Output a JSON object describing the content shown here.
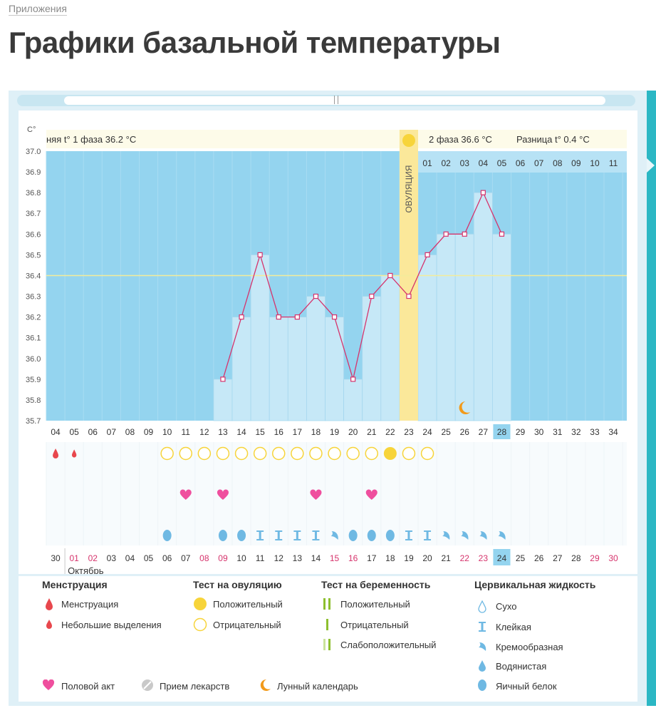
{
  "breadcrumb": "Приложения",
  "page_title": "Графики базальной температуры",
  "chart_data": {
    "type": "line",
    "y_unit": "C°",
    "ylim": [
      35.7,
      37.0
    ],
    "y_ticks": [
      "37.0",
      "36.9",
      "36.8",
      "36.7",
      "36.6",
      "36.5",
      "36.4",
      "36.3",
      "36.2",
      "36.1",
      "36.0",
      "35.9",
      "35.8",
      "35.7"
    ],
    "phase1_label": "няя t° 1 фаза 36.2 °C",
    "phase2_label": "2 фаза 36.6 °C",
    "diff_label": "Разница t° 0.4 °C",
    "ovulation_label": "ОВУЛЯЦИЯ",
    "coverline": 36.4,
    "phase2_days": [
      "01",
      "02",
      "03",
      "04",
      "05",
      "06",
      "07",
      "08",
      "09",
      "10",
      "11"
    ],
    "cycle_days": [
      "04",
      "05",
      "06",
      "07",
      "08",
      "09",
      "10",
      "11",
      "12",
      "13",
      "14",
      "15",
      "16",
      "17",
      "18",
      "19",
      "20",
      "21",
      "22",
      "23",
      "24",
      "25",
      "26",
      "27",
      "28",
      "29",
      "30",
      "31",
      "32",
      "33",
      "34"
    ],
    "today_day": "28",
    "temperatures": [
      null,
      null,
      null,
      null,
      null,
      null,
      null,
      null,
      null,
      35.9,
      36.2,
      36.5,
      36.2,
      36.2,
      36.3,
      36.2,
      35.9,
      36.3,
      36.4,
      36.3,
      36.5,
      36.6,
      36.6,
      36.8,
      36.6,
      null,
      null,
      null,
      null,
      null,
      null
    ],
    "ovulation_index": 19,
    "moon_index": 22,
    "menstruation": [
      "m",
      "s",
      null,
      null,
      null,
      null,
      null,
      null,
      null,
      null,
      null,
      null,
      null,
      null,
      null,
      null,
      null,
      null,
      null,
      null,
      null,
      null,
      null,
      null,
      null,
      null,
      null,
      null,
      null,
      null,
      null
    ],
    "ovulation_test": [
      null,
      null,
      null,
      null,
      null,
      null,
      "neg",
      "neg",
      "neg",
      "neg",
      "neg",
      "neg",
      "neg",
      "neg",
      "neg",
      "neg",
      "neg",
      "neg",
      "pos",
      "neg",
      "neg",
      null,
      null,
      null,
      null,
      null,
      null,
      null,
      null,
      null,
      null
    ],
    "intercourse": [
      null,
      null,
      null,
      null,
      null,
      null,
      null,
      "y",
      null,
      "y",
      null,
      null,
      null,
      null,
      "y",
      null,
      null,
      "y",
      null,
      null,
      null,
      null,
      null,
      null,
      null,
      null,
      null,
      null,
      null,
      null,
      null
    ],
    "cervical_fluid": [
      null,
      null,
      null,
      null,
      null,
      null,
      "egg",
      null,
      null,
      "egg",
      "egg",
      "sticky",
      "sticky",
      "sticky",
      "sticky",
      "creamy",
      "egg",
      "egg",
      "egg",
      "sticky",
      "sticky",
      "creamy",
      "creamy",
      "creamy",
      "creamy",
      null,
      null,
      null,
      null,
      null,
      null
    ],
    "calendar_days": [
      "30",
      "01",
      "02",
      "03",
      "04",
      "05",
      "06",
      "07",
      "08",
      "09",
      "10",
      "11",
      "12",
      "13",
      "14",
      "15",
      "16",
      "17",
      "18",
      "19",
      "20",
      "21",
      "22",
      "23",
      "24",
      "25",
      "26",
      "27",
      "28",
      "29",
      "30"
    ],
    "calendar_red": [
      false,
      true,
      true,
      false,
      false,
      false,
      false,
      false,
      true,
      true,
      false,
      false,
      false,
      false,
      false,
      true,
      true,
      false,
      false,
      false,
      false,
      false,
      true,
      true,
      false,
      false,
      false,
      false,
      false,
      true,
      true
    ],
    "today_calendar": "24",
    "month_label": "Октябрь"
  },
  "legend": {
    "menstruation_title": "Менструация",
    "menstruation_item": "Менструация",
    "spotting_item": "Небольшие выделения",
    "ovtest_title": "Тест на овуляцию",
    "ovtest_positive": "Положительный",
    "ovtest_negative": "Отрицательный",
    "preg_title": "Тест на беременность",
    "preg_positive": "Положительный",
    "preg_negative": "Отрицательный",
    "preg_weak": "Слабоположительный",
    "cf_title": "Цервикальная жидкость",
    "cf_dry": "Сухо",
    "cf_sticky": "Клейкая",
    "cf_creamy": "Кремообразная",
    "cf_watery": "Водянистая",
    "cf_egg": "Яичный белок",
    "intercourse": "Половой акт",
    "medication": "Прием лекарств",
    "lunar": "Лунный календарь"
  },
  "colors": {
    "chart_bg": "#94d4ef",
    "bar": "#c6e8f7",
    "line": "#d6336c",
    "ovulation_band": "#fbe89a",
    "coverline": "#f3ec9a",
    "positive": "#f7d43a",
    "heart": "#ef4f9e",
    "drop": "#e8474d",
    "cervical": "#6fb9e3",
    "preg_green": "#8dbf2e",
    "moon": "#f29a1a"
  }
}
